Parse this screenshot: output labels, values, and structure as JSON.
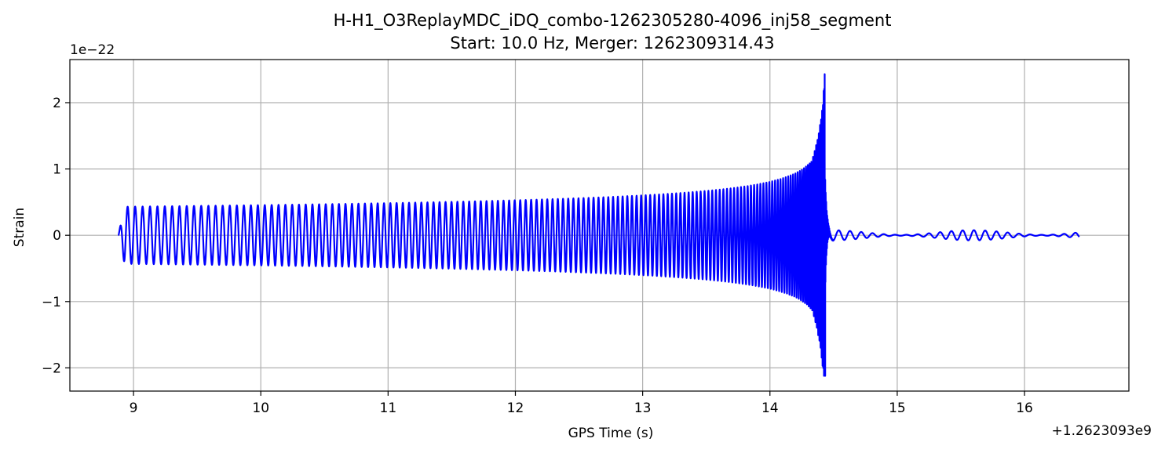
{
  "chart_data": {
    "type": "line",
    "title": "H-H1_O3ReplayMDC_iDQ_combo-1262305280-4096_inj58_segment",
    "subtitle": "Start: 10.0 Hz, Merger: 1262309314.43",
    "xlabel": "GPS Time (s)",
    "ylabel": "Strain",
    "x_offset_label": "+1.2623093e9",
    "y_scale_label": "1e−22",
    "xlim": [
      8.5,
      16.82
    ],
    "ylim": [
      -2.35,
      2.65
    ],
    "xticks": [
      9,
      10,
      11,
      12,
      13,
      14,
      15,
      16
    ],
    "xtick_labels": [
      "9",
      "10",
      "11",
      "12",
      "13",
      "14",
      "15",
      "16"
    ],
    "yticks": [
      -2,
      -1,
      0,
      1,
      2
    ],
    "ytick_labels": [
      "−2",
      "−1",
      "0",
      "1",
      "2"
    ],
    "grid": true,
    "series": [
      {
        "color": "#0000ff",
        "t_start": 8.88,
        "t_merger": 14.43,
        "t_end": 16.43,
        "peak_max": 2.43,
        "peak_min": -2.12
      }
    ]
  }
}
